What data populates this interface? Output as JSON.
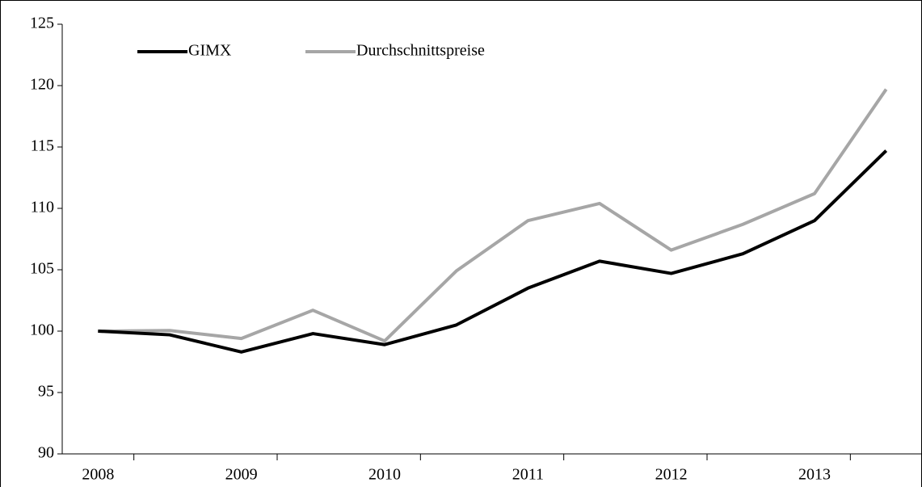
{
  "chart_data": {
    "type": "line",
    "categories": [
      "2008",
      null,
      "2009",
      null,
      "2010",
      null,
      "2011",
      null,
      "2012",
      null,
      "2013",
      null
    ],
    "series": [
      {
        "name": "GIMX",
        "color": "#000000",
        "values": [
          100,
          99.7,
          98.3,
          99.8,
          98.9,
          100.5,
          103.5,
          105.7,
          104.7,
          106.3,
          109,
          114.7
        ]
      },
      {
        "name": "Durchschnittspreise",
        "color": "#a6a6a6",
        "values": [
          100,
          100.05,
          99.4,
          101.7,
          99.2,
          104.9,
          109,
          110.4,
          106.6,
          108.7,
          111.2,
          119.7
        ]
      }
    ],
    "ylim": [
      90,
      125
    ],
    "yticks": [
      90,
      95,
      100,
      105,
      110,
      115,
      120,
      125
    ],
    "grid": false,
    "legend": "top-left"
  }
}
